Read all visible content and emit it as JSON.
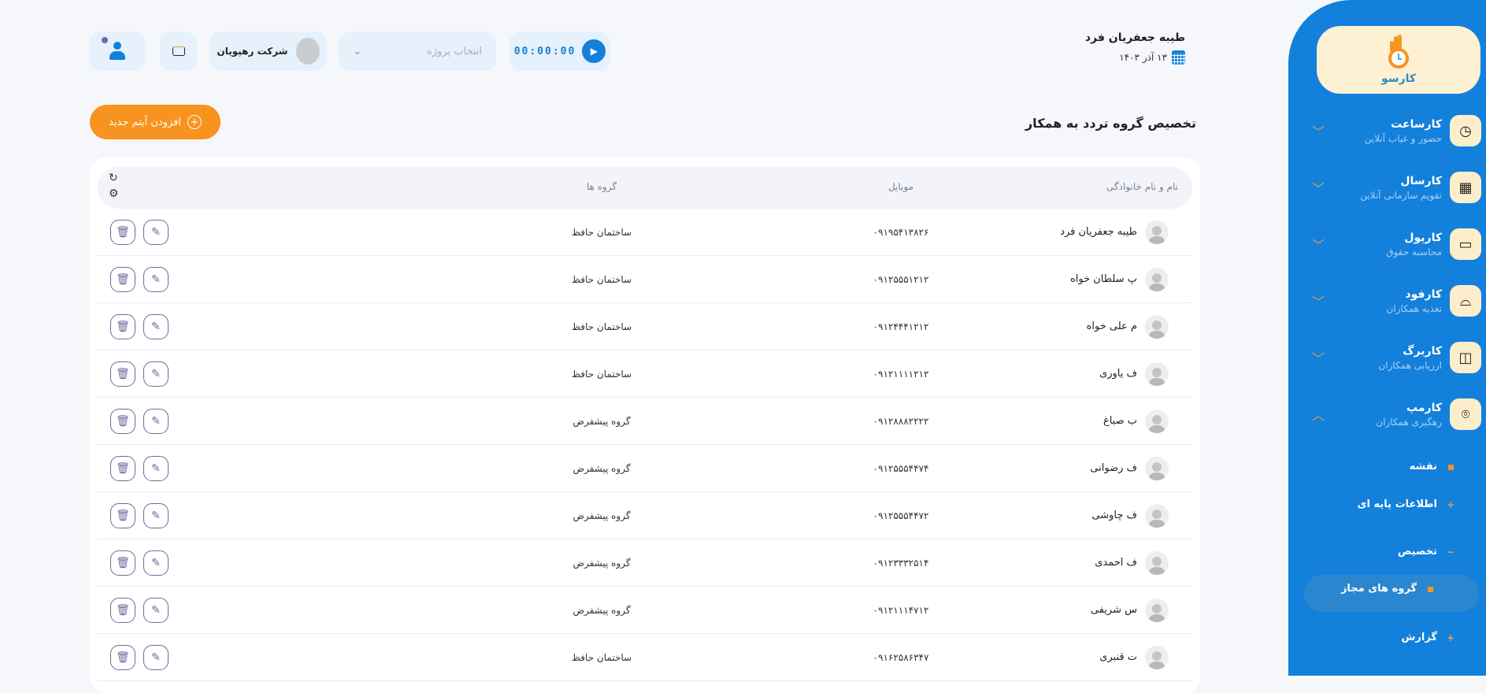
{
  "sidebar": {
    "logo_text": "کارسو",
    "items": [
      {
        "title": "کارساعت",
        "subtitle": "حضور و غیاب آنلاین",
        "icon": "clock-icon",
        "expanded": false
      },
      {
        "title": "کارسال",
        "subtitle": "تقویم سازمانی آنلاین",
        "icon": "calendar-icon",
        "expanded": false
      },
      {
        "title": "کارپول",
        "subtitle": "محاسبه حقوق",
        "icon": "money-icon",
        "expanded": false
      },
      {
        "title": "کارفود",
        "subtitle": "تغذیه همکاران",
        "icon": "food-cloche-icon",
        "expanded": false
      },
      {
        "title": "کاربرگ",
        "subtitle": "ارزیابی همکاران",
        "icon": "note-icon",
        "expanded": false
      },
      {
        "title": "کارمپ",
        "subtitle": "رهگیری همکاران",
        "icon": "map-pin-icon",
        "expanded": true
      }
    ],
    "subitems": [
      {
        "label": "نقشه",
        "marker": "square"
      },
      {
        "label": "اطلاعات پایه ای",
        "marker": "+"
      },
      {
        "label": "تخصیص",
        "marker": "−"
      },
      {
        "label": "گروه های مجاز",
        "marker": "square",
        "active": true
      },
      {
        "label": "گزارش",
        "marker": "+"
      }
    ]
  },
  "header": {
    "user_name": "طیبه جعفریان فرد",
    "date": "۱۳ آذر ۱۴۰۳",
    "timer": "00:00:00",
    "project_placeholder": "انتخاب پروژه",
    "company": "شرکت رهپویان"
  },
  "page": {
    "title": "تخصیص گروه تردد به همکار",
    "add_button": "افزودن آیتم جدید"
  },
  "table": {
    "columns": {
      "name": "نام و نام خانوادگی",
      "mobile": "موبایل",
      "groups": "گروه ها"
    },
    "rows": [
      {
        "name": "طیبه جعفریان فرد",
        "mobile": "۰۹۱۹۵۴۱۳۸۲۶",
        "group": "ساختمان حافظ"
      },
      {
        "name": "پ سلطان خواه",
        "mobile": "۰۹۱۲۵۵۵۱۲۱۲",
        "group": "ساختمان حافظ"
      },
      {
        "name": "م علی خواه",
        "mobile": "۰۹۱۲۴۴۴۱۲۱۲",
        "group": "ساختمان حافظ"
      },
      {
        "name": "ف یاوری",
        "mobile": "۰۹۱۲۱۱۱۱۲۱۲",
        "group": "ساختمان حافظ"
      },
      {
        "name": "ب صباغ",
        "mobile": "۰۹۱۲۸۸۸۲۲۲۲",
        "group": "گروه پیشفرض"
      },
      {
        "name": "ف رضوانی",
        "mobile": "۰۹۱۲۵۵۵۴۴۷۴",
        "group": "گروه پیشفرض"
      },
      {
        "name": "ف چاوشی",
        "mobile": "۰۹۱۲۵۵۵۴۴۷۲",
        "group": "گروه پیشفرض"
      },
      {
        "name": "ف احمدی",
        "mobile": "۰۹۱۲۳۳۳۲۵۱۴",
        "group": "گروه پیشفرض"
      },
      {
        "name": "س شریفی",
        "mobile": "۰۹۱۲۱۱۱۴۷۱۲",
        "group": "گروه پیشفرض"
      },
      {
        "name": "ت قنبری",
        "mobile": "۰۹۱۶۲۵۸۶۳۴۷",
        "group": "ساختمان حافظ"
      }
    ]
  },
  "colors": {
    "sidebar": "#1380dc",
    "accent": "#f7931e",
    "background": "#f5f7fb",
    "icon_bg": "#fdeecb"
  }
}
